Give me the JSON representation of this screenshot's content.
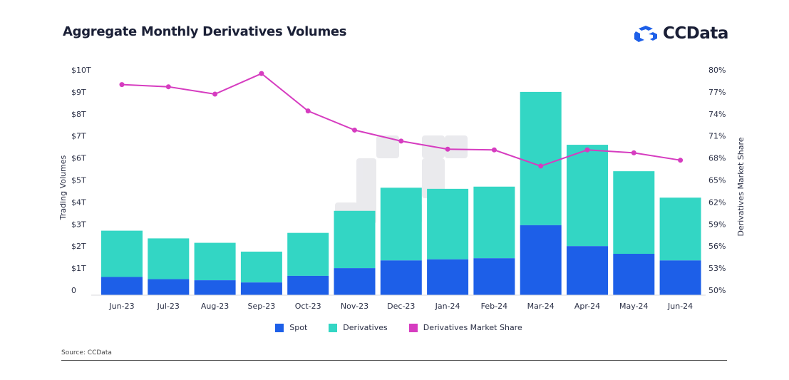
{
  "header": {
    "title": "Aggregate Monthly Derivatives Volumes",
    "logo_text": "CCData"
  },
  "colors": {
    "spot": "#1d5fe8",
    "derivatives": "#33d6c4",
    "market_share": "#d63cc0",
    "logo_accent": "#1d5fe8"
  },
  "chart_data": {
    "type": "bar",
    "stacked": true,
    "categories": [
      "Jun-23",
      "Jul-23",
      "Aug-23",
      "Sep-23",
      "Oct-23",
      "Nov-23",
      "Dec-23",
      "Jan-24",
      "Feb-24",
      "Mar-24",
      "Apr-24",
      "May-24",
      "Jun-24"
    ],
    "series": [
      {
        "name": "Spot",
        "axis": "left",
        "values": [
          0.6,
          0.5,
          0.45,
          0.35,
          0.65,
          1.0,
          1.35,
          1.4,
          1.45,
          2.95,
          2.0,
          1.65,
          1.35
        ]
      },
      {
        "name": "Derivatives",
        "axis": "left",
        "values": [
          2.1,
          1.85,
          1.7,
          1.4,
          1.95,
          2.6,
          3.3,
          3.2,
          3.25,
          6.05,
          4.6,
          3.75,
          2.85
        ]
      },
      {
        "name": "Derivatives Market Share",
        "type": "line",
        "axis": "right",
        "values": [
          78.0,
          77.7,
          76.7,
          79.5,
          74.4,
          71.8,
          70.3,
          69.2,
          69.1,
          66.9,
          69.1,
          68.7,
          67.7
        ]
      }
    ],
    "ylabel": "Trading Volumes",
    "y2label": "Derivatives Market Share",
    "ylim": [
      0,
      10
    ],
    "y2lim": [
      50,
      80
    ],
    "y_ticks": [
      "0",
      "$1T",
      "$2T",
      "$3T",
      "$4T",
      "$5T",
      "$6T",
      "$7T",
      "$8T",
      "$9T",
      "$10T"
    ],
    "y2_ticks": [
      "50%",
      "53%",
      "56%",
      "59%",
      "62%",
      "65%",
      "68%",
      "71%",
      "74%",
      "77%",
      "80%"
    ],
    "grid": false,
    "legend_position": "bottom-center"
  },
  "legend": {
    "items": [
      "Spot",
      "Derivatives",
      "Derivatives Market Share"
    ]
  },
  "footer": {
    "source": "Source: CCData"
  }
}
